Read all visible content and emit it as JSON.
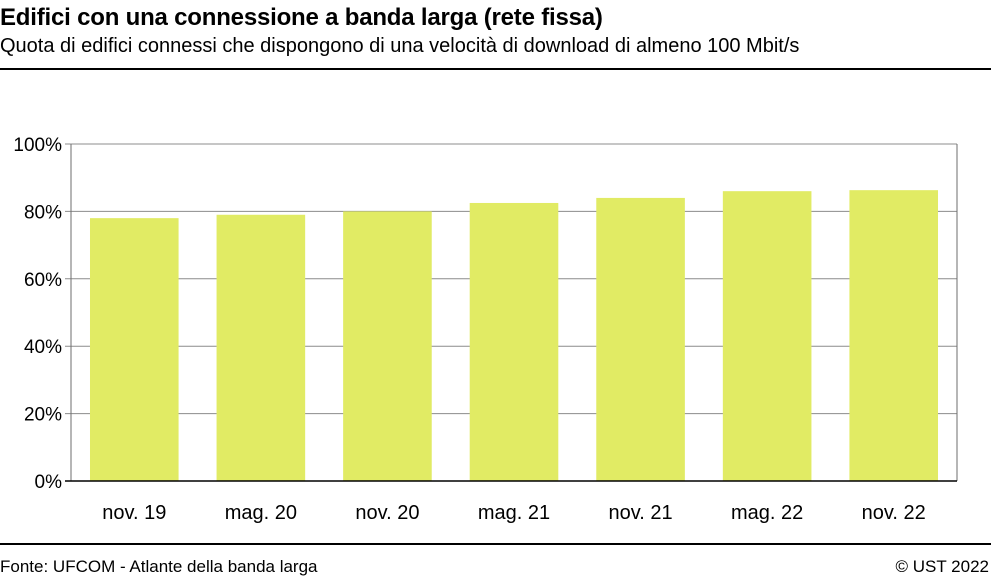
{
  "header": {
    "title": "Edifici con una connessione a banda larga (rete fissa)",
    "subtitle": "Quota di edifici connessi che dispongono di una velocità di download di almeno 100 Mbit/s"
  },
  "footer": {
    "source": "Fonte: UFCOM - Atlante della banda larga",
    "copyright": "© UST 2022"
  },
  "colors": {
    "bar": "#e1eb64",
    "grid": "#8c8c8c",
    "frame": "#6e6e6e"
  },
  "chart_data": {
    "type": "bar",
    "categories": [
      "nov. 19",
      "mag. 20",
      "nov. 20",
      "mag. 21",
      "nov. 21",
      "mag. 22",
      "nov. 22"
    ],
    "values": [
      78,
      79,
      80,
      82.5,
      84,
      86,
      86.3
    ],
    "ylim": [
      0,
      100
    ],
    "yticks": [
      0,
      20,
      40,
      60,
      80,
      100
    ],
    "ytick_labels": [
      "0%",
      "20%",
      "40%",
      "60%",
      "80%",
      "100%"
    ],
    "grid": true,
    "legend": "none"
  }
}
